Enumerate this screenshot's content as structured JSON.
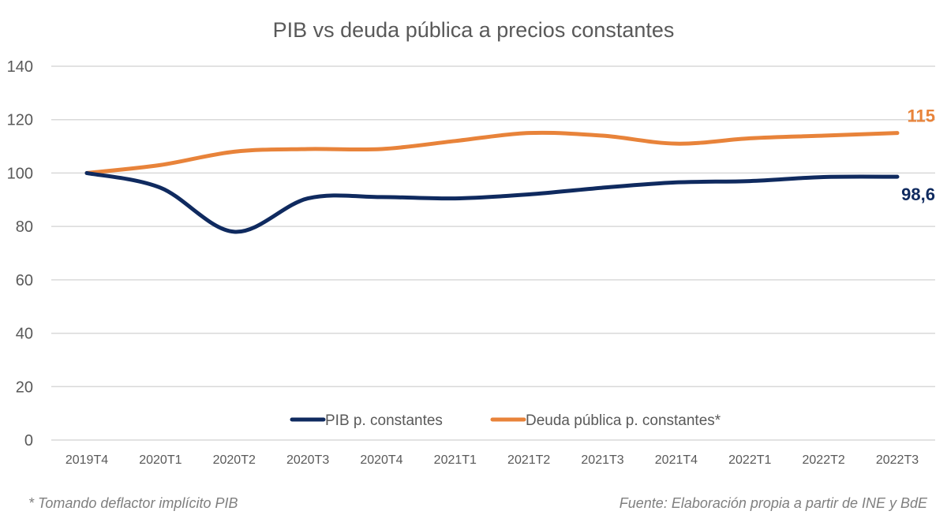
{
  "chart_data": {
    "type": "line",
    "title": "PIB vs deuda pública a precios constantes",
    "xlabel": "",
    "ylabel": "",
    "ylim": [
      0,
      140
    ],
    "yticks": [
      0,
      20,
      40,
      60,
      80,
      100,
      120,
      140
    ],
    "grid": true,
    "legend_position": "bottom-center",
    "categories": [
      "2019T4",
      "2020T1",
      "2020T2",
      "2020T3",
      "2020T4",
      "2021T1",
      "2021T2",
      "2021T3",
      "2021T4",
      "2022T1",
      "2022T2",
      "2022T3"
    ],
    "series": [
      {
        "name": "PIB p. constantes",
        "color": "#0f2a5f",
        "values": [
          100,
          94.5,
          78,
          90.5,
          91,
          90.5,
          92,
          94.5,
          96.5,
          97,
          98.5,
          98.6
        ],
        "end_label": "98,6"
      },
      {
        "name": "Deuda pública p. constantes*",
        "color": "#e8833a",
        "values": [
          100,
          103,
          108,
          109,
          109,
          112,
          115,
          114,
          111,
          113,
          114,
          115
        ],
        "end_label": "115"
      }
    ],
    "footnote": "* Tomando deflactor implícito PIB",
    "source": "Fuente: Elaboración propia a partir de INE y BdE"
  }
}
